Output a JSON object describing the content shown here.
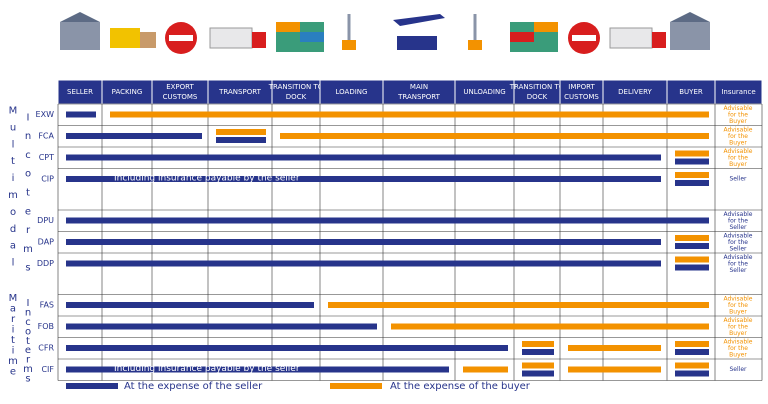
{
  "columns": [
    "SELLER",
    "PACKING",
    "EXPORT CUSTOMS",
    "TRANSPORT",
    "TRANSITION TO DOCK",
    "LOADING",
    "MAIN TRANSPORT",
    "UNLOADING",
    "TRANSITION TO DOCK",
    "IMPORT CUSTOMS",
    "DELIVERY",
    "BUYER",
    "Insurance"
  ],
  "groups": [
    {
      "name": "Multimodal",
      "sub": "Incoterms"
    },
    {
      "name": "Maritime",
      "sub": "Incoterms"
    }
  ],
  "rows": [
    {
      "code": "EXW",
      "group": 0,
      "seller": [
        [
          0,
          0
        ]
      ],
      "buyer": [
        [
          1,
          11
        ]
      ],
      "split": [],
      "insurance": "Advisable for the Buyer",
      "insurer": "buyer"
    },
    {
      "code": "FCA",
      "group": 0,
      "seller": [
        [
          0,
          2
        ]
      ],
      "buyer": [
        [
          4,
          11
        ]
      ],
      "split": [
        3
      ],
      "insurance": "Advisable for the Buyer",
      "insurer": "buyer"
    },
    {
      "code": "CPT",
      "group": 0,
      "seller": [
        [
          0,
          10
        ]
      ],
      "buyer": [],
      "split": [
        11
      ],
      "insurance": "Advisable for the Buyer",
      "insurer": "buyer"
    },
    {
      "code": "CIP",
      "group": 0,
      "seller": [
        [
          0,
          10
        ]
      ],
      "buyer": [],
      "split": [
        11
      ],
      "insurance": "Seller",
      "insurer": "seller",
      "note": "Including insurance payable by the seller"
    },
    {
      "code": "DPU",
      "group": 0,
      "seller": [
        [
          0,
          11
        ]
      ],
      "buyer": [],
      "split": [],
      "insurance": "Advisable for the Seller",
      "insurer": "seller"
    },
    {
      "code": "DAP",
      "group": 0,
      "seller": [
        [
          0,
          10
        ]
      ],
      "buyer": [],
      "split": [
        11
      ],
      "insurance": "Advisable for the Seller",
      "insurer": "seller"
    },
    {
      "code": "DDP",
      "group": 0,
      "seller": [
        [
          0,
          10
        ]
      ],
      "buyer": [],
      "split": [
        11
      ],
      "insurance": "Advisable for the Seller",
      "insurer": "seller"
    },
    {
      "code": "FAS",
      "group": 1,
      "seller": [
        [
          0,
          4
        ]
      ],
      "buyer": [
        [
          5,
          11
        ]
      ],
      "split": [],
      "insurance": "Advisable for the Buyer",
      "insurer": "buyer"
    },
    {
      "code": "FOB",
      "group": 1,
      "seller": [
        [
          0,
          5
        ]
      ],
      "buyer": [
        [
          6,
          11
        ]
      ],
      "split": [],
      "insurance": "Advisable for the Buyer",
      "insurer": "buyer"
    },
    {
      "code": "CFR",
      "group": 1,
      "seller": [
        [
          0,
          7
        ]
      ],
      "buyer": [
        [
          9,
          10
        ]
      ],
      "split": [
        8,
        11
      ],
      "insurance": "Advisable for the Buyer",
      "insurer": "buyer"
    },
    {
      "code": "CIF",
      "group": 1,
      "seller": [
        [
          0,
          6
        ]
      ],
      "buyer": [
        [
          7,
          7
        ],
        [
          9,
          10
        ]
      ],
      "split": [
        8,
        11
      ],
      "insurance": "Seller",
      "insurer": "seller",
      "note": "Including insurance payable by the seller"
    }
  ],
  "legend": {
    "seller": "At the expense of the seller",
    "buyer": "At the expense of the buyer"
  }
}
